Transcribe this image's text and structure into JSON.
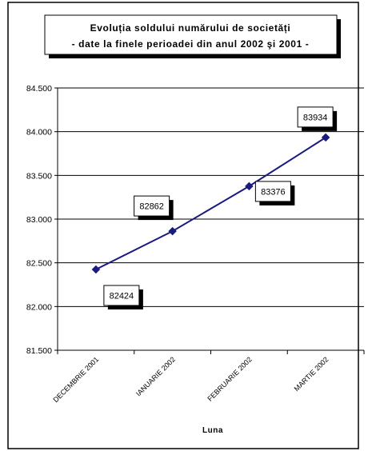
{
  "chart_data": {
    "type": "line",
    "title_lines": [
      "Evoluția soldului numărului de societăți",
      "- date la finele perioadei din anul 2002 şi 2001 -"
    ],
    "xlabel": "Luna",
    "ylabel": "",
    "categories": [
      "DECEMBRIE 2001",
      "IANUARIE 2002",
      "FEBRUARIE 2002",
      "MARTIE 2002"
    ],
    "values": [
      82424,
      82862,
      83376,
      83934
    ],
    "data_labels": [
      "82424",
      "82862",
      "83376",
      "83934"
    ],
    "ylim": [
      81500,
      84500
    ],
    "y_ticks": [
      {
        "value": 81500,
        "label": "81.500"
      },
      {
        "value": 82000,
        "label": "82.000"
      },
      {
        "value": 82500,
        "label": "82.500"
      },
      {
        "value": 83000,
        "label": "83.000"
      },
      {
        "value": 83500,
        "label": "83.500"
      },
      {
        "value": 84000,
        "label": "84.000"
      },
      {
        "value": 84500,
        "label": "84.500"
      }
    ],
    "grid": true,
    "legend": "none",
    "colors": {
      "line": "#1a1a80",
      "marker": "#1a1a80",
      "grid": "#000000",
      "border": "#000000"
    }
  }
}
